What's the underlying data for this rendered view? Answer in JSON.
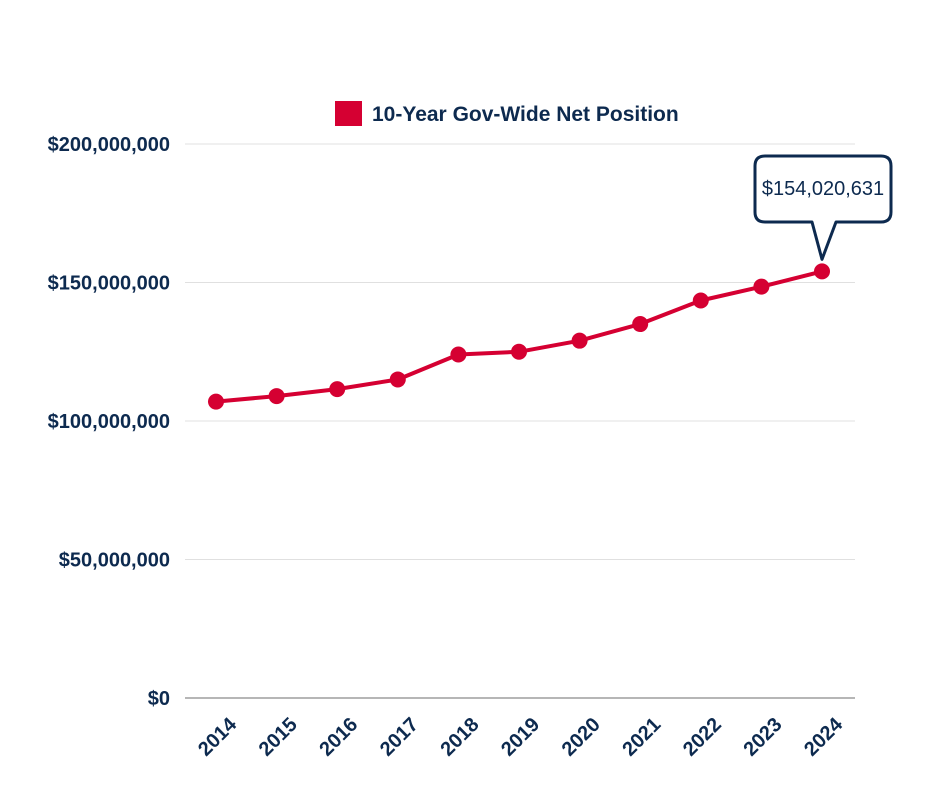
{
  "chart_data": {
    "type": "line",
    "categories": [
      "2014",
      "2015",
      "2016",
      "2017",
      "2018",
      "2019",
      "2020",
      "2021",
      "2022",
      "2023",
      "2024"
    ],
    "series": [
      {
        "name": "10-Year Gov-Wide Net Position",
        "values": [
          107000000,
          109000000,
          111500000,
          115000000,
          124000000,
          125000000,
          129000000,
          135000000,
          143500000,
          148500000,
          154020631
        ]
      }
    ],
    "ylim": [
      0,
      200000000
    ],
    "yticks": [
      0,
      50000000,
      100000000,
      150000000,
      200000000
    ],
    "ytick_labels": [
      "$0",
      "$50,000,000",
      "$100,000,000",
      "$150,000,000",
      "$200,000,000"
    ],
    "legend_position": "top",
    "grid": true,
    "annotation": {
      "category": "2024",
      "text": "$154,020,631"
    },
    "colors": {
      "series": "#d50032",
      "text": "#0d2a4f",
      "grid": "#e0e0e0",
      "axis": "#9e9e9e",
      "callout_border": "#0d2a4f"
    }
  }
}
